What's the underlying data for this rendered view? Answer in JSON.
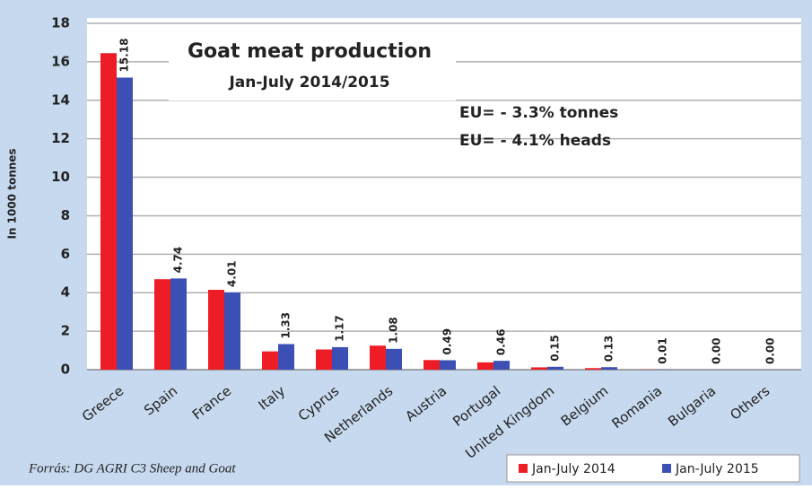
{
  "chart_data": {
    "type": "bar",
    "title": "Goat meat production",
    "subtitle": "Jan-July 2014/2015",
    "y_label": "In 1000 tonnes",
    "annotations": [
      "EU= - 3.3% tonnes",
      "EU= - 4.1% heads"
    ],
    "source": "Forrás: DG AGRI C3 Sheep and Goat",
    "categories": [
      "Greece",
      "Spain",
      "France",
      "Italy",
      "Cyprus",
      "Netherlands",
      "Austria",
      "Portugal",
      "United Kingdom",
      "Belgium",
      "Romania",
      "Bulgaria",
      "Others"
    ],
    "series": [
      {
        "name": "Jan-July 2014",
        "color": "#ee1c25",
        "values": [
          16.45,
          4.7,
          4.15,
          0.95,
          1.05,
          1.25,
          0.5,
          0.38,
          0.12,
          0.08,
          0.01,
          0,
          0
        ]
      },
      {
        "name": "Jan-July 2015",
        "color": "#3c4fb5",
        "values": [
          15.18,
          4.74,
          4.01,
          1.33,
          1.17,
          1.08,
          0.49,
          0.46,
          0.15,
          0.13,
          0.01,
          0,
          0
        ],
        "value_labels": [
          "15.18",
          "4.74",
          "4.01",
          "1.33",
          "1.17",
          "1.08",
          "0.49",
          "0.46",
          "0.15",
          "0.13",
          "0.01",
          "0.00",
          "0.00"
        ]
      }
    ],
    "ylim": [
      0,
      18
    ],
    "yticks": [
      0,
      2,
      4,
      6,
      8,
      10,
      12,
      14,
      16,
      18
    ],
    "grid": true,
    "legend": "bottom-right"
  }
}
